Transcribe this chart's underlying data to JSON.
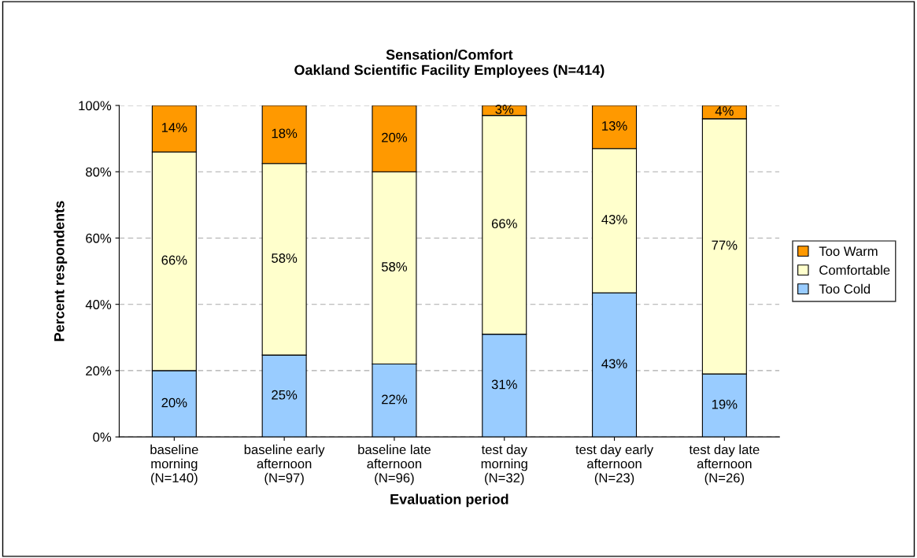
{
  "chart_data": {
    "type": "bar",
    "stacked": true,
    "title": "Sensation/Comfort\nOakland Scientific Facility Employees (N=414)",
    "xlabel": "Evaluation period",
    "ylabel": "Percent respondents",
    "categories": [
      "baseline\nmorning\n(N=140)",
      "baseline early\nafternoon\n(N=97)",
      "baseline late\nafternoon\n(N=96)",
      "test day\nmorning\n(N=32)",
      "test day early\nafternoon\n(N=23)",
      "test day late\nafternoon\n(N=26)"
    ],
    "series": [
      {
        "name": "Too Cold",
        "color": "#99ccff",
        "values": [
          20,
          24.7,
          22,
          31,
          43.5,
          19
        ],
        "value_labels": [
          "20%",
          "25%",
          "22%",
          "31%",
          "43%",
          "19%"
        ]
      },
      {
        "name": "Comfortable",
        "color": "#ffffcc",
        "values": [
          66,
          57.8,
          58,
          66,
          43.5,
          77
        ],
        "value_labels": [
          "66%",
          "58%",
          "58%",
          "66%",
          "43%",
          "77%"
        ]
      },
      {
        "name": "Too Warm",
        "color": "#ff9900",
        "values": [
          14,
          17.5,
          20,
          3,
          13,
          4
        ],
        "value_labels": [
          "14%",
          "18%",
          "20%",
          "3%",
          "13%",
          "4%"
        ]
      }
    ],
    "ylim": [
      0,
      100
    ],
    "yticks": [
      {
        "value": 0,
        "label": "0%"
      },
      {
        "value": 20,
        "label": "20%"
      },
      {
        "value": 40,
        "label": "40%"
      },
      {
        "value": 60,
        "label": "60%"
      },
      {
        "value": 80,
        "label": "80%"
      },
      {
        "value": 100,
        "label": "100%"
      }
    ],
    "grid": "y",
    "legend": "right"
  }
}
